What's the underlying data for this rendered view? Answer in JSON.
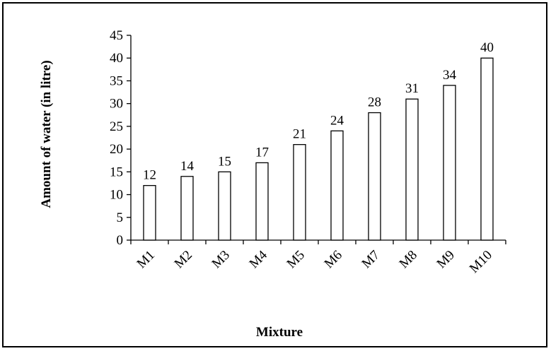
{
  "chart_data": {
    "type": "bar",
    "title": "",
    "xlabel": "Mixture",
    "ylabel": "Amount of water (in litre)",
    "categories": [
      "M1",
      "M2",
      "M3",
      "M4",
      "M5",
      "M6",
      "M7",
      "M8",
      "M9",
      "M10"
    ],
    "values": [
      12,
      14,
      15,
      17,
      21,
      24,
      28,
      31,
      34,
      40
    ],
    "data_labels": [
      "12",
      "14",
      "15",
      "17",
      "21",
      "24",
      "28",
      "31",
      "34",
      "40"
    ],
    "y_ticks": [
      "0",
      "5",
      "10",
      "15",
      "20",
      "25",
      "30",
      "35",
      "40",
      "45"
    ],
    "ylim": [
      0,
      45
    ],
    "grid": false,
    "legend": "none",
    "bar_fill": "#ffffff",
    "bar_stroke": "#000000"
  }
}
